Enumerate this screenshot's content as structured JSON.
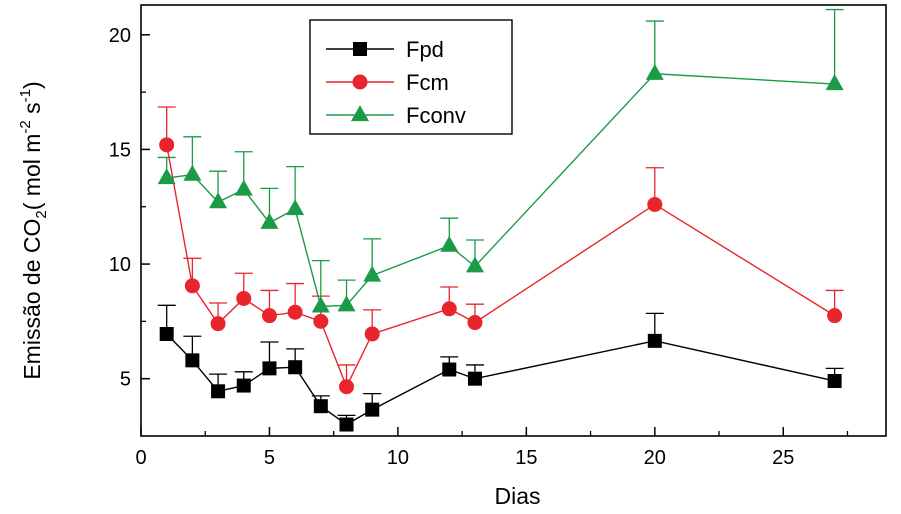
{
  "chart_data": {
    "type": "line",
    "xlabel": "Dias",
    "ylabel": {
      "parts": [
        "Emissão de CO",
        "2",
        "(  mol m",
        "-2",
        " s",
        "-1",
        ")"
      ]
    },
    "xlim": [
      0,
      29
    ],
    "ylim": [
      2.5,
      21.3
    ],
    "xticks": [
      0,
      5,
      10,
      15,
      20,
      25
    ],
    "yticks": [
      5,
      10,
      15,
      20
    ],
    "legend_position": "top-center",
    "grid": false,
    "series": [
      {
        "name": "Fpd",
        "color": "#000000",
        "marker": "square",
        "x": [
          1,
          2,
          3,
          4,
          5,
          6,
          7,
          8,
          9,
          12,
          13,
          20,
          27
        ],
        "y": [
          6.95,
          5.8,
          4.45,
          4.7,
          5.45,
          5.5,
          3.8,
          3.0,
          3.65,
          5.4,
          5.0,
          6.65,
          4.9
        ],
        "err": [
          1.25,
          1.05,
          0.75,
          0.6,
          1.15,
          0.8,
          0.45,
          0.4,
          0.7,
          0.55,
          0.6,
          1.2,
          0.55
        ]
      },
      {
        "name": "Fcm",
        "color": "#e8252c",
        "marker": "circle",
        "x": [
          1,
          2,
          3,
          4,
          5,
          6,
          7,
          8,
          9,
          12,
          13,
          20,
          27
        ],
        "y": [
          15.2,
          9.05,
          7.4,
          8.5,
          7.75,
          7.9,
          7.5,
          4.65,
          6.95,
          8.05,
          7.45,
          12.6,
          7.75
        ],
        "err": [
          1.65,
          1.2,
          0.9,
          1.1,
          1.1,
          1.25,
          1.1,
          0.95,
          1.05,
          0.95,
          0.8,
          1.6,
          1.1
        ]
      },
      {
        "name": "Fconv",
        "color": "#1b9a48",
        "marker": "triangle",
        "x": [
          1,
          2,
          3,
          4,
          5,
          6,
          7,
          8,
          9,
          12,
          13,
          20,
          27
        ],
        "y": [
          13.75,
          13.9,
          12.7,
          13.25,
          11.8,
          12.4,
          8.15,
          8.2,
          9.5,
          10.8,
          9.9,
          18.3,
          17.85
        ],
        "err": [
          0.9,
          1.65,
          1.35,
          1.65,
          1.5,
          1.85,
          2.0,
          1.1,
          1.6,
          1.2,
          1.15,
          2.3,
          3.25
        ]
      }
    ]
  }
}
